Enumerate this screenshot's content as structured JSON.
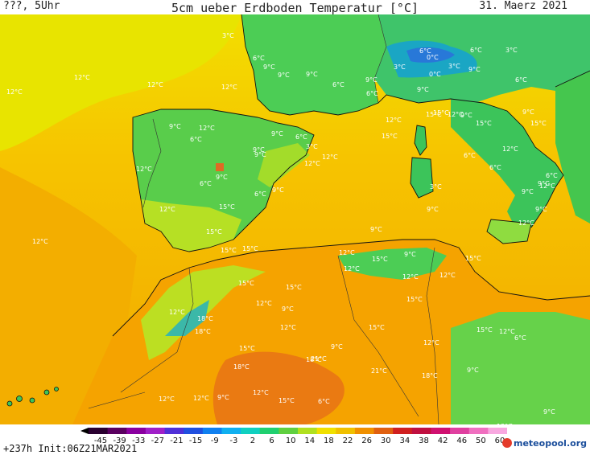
{
  "header": {
    "left": "???, 5Uhr",
    "title": "5cm ueber Erdboden Temperatur [°C]",
    "date": "31. Maerz 2021"
  },
  "footer": {
    "run_info": "+237h Init:06Z21MAR2021",
    "brand": "meteopool.org"
  },
  "colorbar": {
    "ticks": [
      "-45",
      "-39",
      "-33",
      "-27",
      "-21",
      "-15",
      "-9",
      "-3",
      "2",
      "6",
      "10",
      "14",
      "18",
      "22",
      "26",
      "30",
      "34",
      "38",
      "42",
      "46",
      "50",
      "60"
    ]
  },
  "labels": [
    {
      "t": "3°C",
      "c": "#2a5"
    },
    {
      "t": "6°C",
      "c": "#2a5"
    },
    {
      "t": "9°C",
      "c": "#2a5"
    },
    {
      "t": "9°C",
      "c": "#2a5"
    },
    {
      "t": "9°C",
      "c": "#2a5"
    },
    {
      "t": "6°C",
      "c": "#2a5"
    },
    {
      "t": "6°C",
      "c": "#2a5"
    },
    {
      "t": "9°C",
      "c": "#2a5"
    },
    {
      "t": "6°C",
      "c": "#2a5"
    },
    {
      "t": "0°C",
      "c": "#16a"
    },
    {
      "t": "3°C",
      "c": "#16a"
    },
    {
      "t": "0°C",
      "c": "#16a"
    },
    {
      "t": "3°C",
      "c": "#16a"
    },
    {
      "t": "3°C",
      "c": "#2a5"
    },
    {
      "t": "6°C",
      "c": "#2a5"
    },
    {
      "t": "6°C",
      "c": "#2a5"
    },
    {
      "t": "9°C",
      "c": "#2a5"
    },
    {
      "t": "9°C",
      "c": "#2a5"
    },
    {
      "t": "12°C",
      "c": "#b70"
    },
    {
      "t": "12°C",
      "c": "#b70"
    },
    {
      "t": "12°C",
      "c": "#b70"
    },
    {
      "t": "12°C",
      "c": "#b70"
    },
    {
      "t": "9°C",
      "c": "#2a5"
    },
    {
      "t": "12°C",
      "c": "#b70"
    },
    {
      "t": "6°C",
      "c": "#2a5"
    },
    {
      "t": "9°C",
      "c": "#2a5"
    },
    {
      "t": "6°C",
      "c": "#2a5"
    },
    {
      "t": "3°C",
      "c": "#2a5"
    },
    {
      "t": "12°C",
      "c": "#b70"
    },
    {
      "t": "9°C",
      "c": "#2a5"
    },
    {
      "t": "12°C",
      "c": "#b70"
    },
    {
      "t": "6°C",
      "c": "#2a5"
    },
    {
      "t": "9°C",
      "c": "#2a5"
    },
    {
      "t": "6°C",
      "c": "#2a5"
    },
    {
      "t": "9°C",
      "c": "#2a5"
    },
    {
      "t": "12°C",
      "c": "#b70"
    },
    {
      "t": "9°C",
      "c": "#2a5"
    },
    {
      "t": "12°C",
      "c": "#b70"
    },
    {
      "t": "15°C",
      "c": "#b70"
    },
    {
      "t": "15°C",
      "c": "#b70"
    },
    {
      "t": "15°C",
      "c": "#b70"
    },
    {
      "t": "12°C",
      "c": "#b70"
    },
    {
      "t": "9°C",
      "c": "#2a5"
    },
    {
      "t": "15°C",
      "c": "#b70"
    },
    {
      "t": "15°C",
      "c": "#b70"
    },
    {
      "t": "9°C",
      "c": "#2a5"
    },
    {
      "t": "12°C",
      "c": "#b70"
    },
    {
      "t": "6°C",
      "c": "#2a5"
    },
    {
      "t": "6°C",
      "c": "#2a5"
    },
    {
      "t": "3°C",
      "c": "#2a5"
    },
    {
      "t": "9°C",
      "c": "#2a5"
    },
    {
      "t": "6°C",
      "c": "#2a5"
    },
    {
      "t": "9°C",
      "c": "#2a5"
    },
    {
      "t": "9°C",
      "c": "#2a5"
    },
    {
      "t": "12°C",
      "c": "#b70"
    },
    {
      "t": "9°C",
      "c": "#2a5"
    },
    {
      "t": "12°C",
      "c": "#b70"
    },
    {
      "t": "12°C",
      "c": "#b70"
    },
    {
      "t": "15°C",
      "c": "#b70"
    },
    {
      "t": "15°C",
      "c": "#b70"
    },
    {
      "t": "15°C",
      "c": "#b70"
    },
    {
      "t": "15°C",
      "c": "#b70"
    },
    {
      "t": "9°C",
      "c": "#2a5"
    },
    {
      "t": "12°C",
      "c": "#b70"
    },
    {
      "t": "15°C",
      "c": "#b70"
    },
    {
      "t": "12°C",
      "c": "#b70"
    },
    {
      "t": "12°C",
      "c": "#b70"
    },
    {
      "t": "9°C",
      "c": "#2a5"
    },
    {
      "t": "15°C",
      "c": "#b70"
    },
    {
      "t": "12°C",
      "c": "#b70"
    },
    {
      "t": "15°C",
      "c": "#b70"
    },
    {
      "t": "15°C",
      "c": "#b70"
    },
    {
      "t": "12°C",
      "c": "#b70"
    },
    {
      "t": "6°C",
      "c": "#2a5"
    },
    {
      "t": "9°C",
      "c": "#2a5"
    },
    {
      "t": "15°C",
      "c": "#b70"
    },
    {
      "t": "15°C",
      "c": "#b70"
    },
    {
      "t": "12°C",
      "c": "#b70"
    },
    {
      "t": "12°C",
      "c": "#b70"
    },
    {
      "t": "9°C",
      "c": "#2a5"
    },
    {
      "t": "12°C",
      "c": "#b70"
    },
    {
      "t": "18°C",
      "c": "#b70"
    },
    {
      "t": "18°C",
      "c": "#b70"
    },
    {
      "t": "15°C",
      "c": "#b70"
    },
    {
      "t": "18°C",
      "c": "#b70"
    },
    {
      "t": "9°C",
      "c": "#2a5"
    },
    {
      "t": "15°C",
      "c": "#b70"
    },
    {
      "t": "18°C",
      "c": "#b70"
    },
    {
      "t": "21°C",
      "c": "#b70"
    },
    {
      "t": "21°C",
      "c": "#b70"
    },
    {
      "t": "18°C",
      "c": "#b70"
    },
    {
      "t": "12°C",
      "c": "#b70"
    },
    {
      "t": "12°C",
      "c": "#b70"
    },
    {
      "t": "15°C",
      "c": "#b70"
    },
    {
      "t": "6°C",
      "c": "#2a5"
    },
    {
      "t": "12°C",
      "c": "#b70"
    },
    {
      "t": "12°C",
      "c": "#b70"
    },
    {
      "t": "9°C",
      "c": "#2a5"
    },
    {
      "t": "9°C",
      "c": "#2a5"
    },
    {
      "t": "12°C",
      "c": "#b70"
    },
    {
      "t": "12°C",
      "c": "#b70"
    }
  ]
}
